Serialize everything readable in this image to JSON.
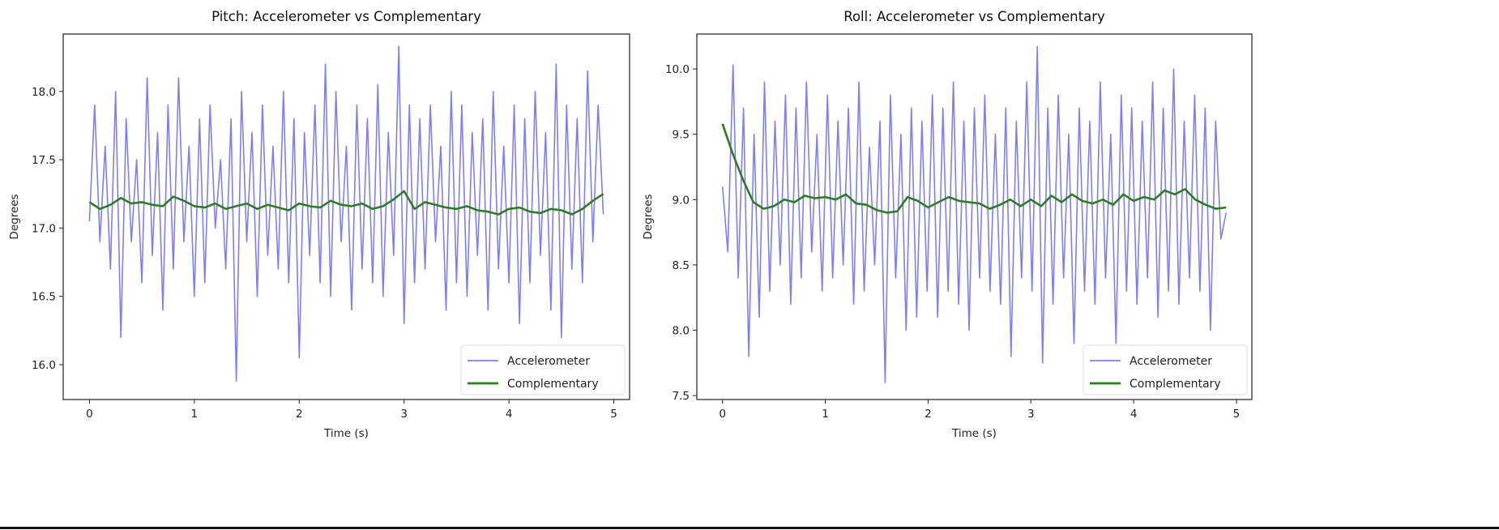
{
  "chart_data": [
    {
      "type": "line",
      "title": "Pitch: Accelerometer vs Complementary",
      "xlabel": "Time (s)",
      "ylabel": "Degrees",
      "xlim": [
        -0.25,
        5.15
      ],
      "ylim": [
        15.745,
        18.42
      ],
      "xticks": [
        0,
        1,
        2,
        3,
        4,
        5
      ],
      "xtick_labels": [
        "0",
        "1",
        "2",
        "3",
        "4",
        "5"
      ],
      "yticks": [
        16.0,
        16.5,
        17.0,
        17.5,
        18.0
      ],
      "ytick_labels": [
        "16.0",
        "16.5",
        "17.0",
        "17.5",
        "18.0"
      ],
      "grid": false,
      "legend_position": "lower-right",
      "x_range": [
        0,
        4.9
      ],
      "series": [
        {
          "name": "Accelerometer",
          "color": "#7f7ff5",
          "values": [
            17.05,
            17.9,
            16.9,
            17.6,
            16.7,
            18.0,
            16.2,
            17.8,
            16.9,
            17.5,
            16.6,
            18.1,
            16.8,
            17.7,
            16.4,
            17.9,
            16.7,
            18.1,
            16.9,
            17.6,
            16.5,
            17.8,
            16.6,
            17.9,
            17.0,
            17.5,
            16.7,
            17.8,
            15.88,
            18.0,
            16.9,
            17.7,
            16.5,
            17.9,
            16.8,
            17.6,
            16.7,
            18.0,
            16.6,
            17.8,
            16.05,
            17.7,
            16.8,
            17.9,
            16.6,
            18.2,
            16.5,
            18.0,
            16.9,
            17.6,
            16.4,
            17.9,
            16.7,
            17.8,
            16.6,
            18.05,
            16.5,
            17.7,
            16.8,
            18.33,
            16.3,
            17.9,
            16.6,
            17.8,
            16.7,
            17.9,
            16.9,
            17.6,
            16.4,
            18.0,
            16.6,
            17.9,
            16.5,
            17.7,
            16.8,
            17.8,
            16.4,
            18.0,
            16.7,
            17.6,
            16.6,
            17.9,
            16.3,
            17.8,
            16.6,
            18.0,
            16.8,
            17.7,
            16.4,
            18.2,
            16.2,
            17.9,
            16.7,
            17.8,
            16.6,
            18.15,
            16.9,
            17.9,
            17.1
          ]
        },
        {
          "name": "Complementary",
          "color": "#2e7d1e",
          "values": [
            17.19,
            17.14,
            17.17,
            17.22,
            17.18,
            17.19,
            17.17,
            17.16,
            17.23,
            17.2,
            17.16,
            17.15,
            17.18,
            17.14,
            17.16,
            17.18,
            17.14,
            17.17,
            17.15,
            17.13,
            17.18,
            17.16,
            17.15,
            17.2,
            17.17,
            17.16,
            17.18,
            17.14,
            17.16,
            17.21,
            17.27,
            17.14,
            17.19,
            17.17,
            17.15,
            17.14,
            17.16,
            17.13,
            17.12,
            17.1,
            17.14,
            17.15,
            17.12,
            17.11,
            17.14,
            17.13,
            17.1,
            17.14,
            17.2,
            17.25
          ]
        }
      ]
    },
    {
      "type": "line",
      "title": "Roll: Accelerometer vs Complementary",
      "xlabel": "Time (s)",
      "ylabel": "Degrees",
      "xlim": [
        -0.25,
        5.15
      ],
      "ylim": [
        7.47,
        10.267
      ],
      "xticks": [
        0,
        1,
        2,
        3,
        4,
        5
      ],
      "xtick_labels": [
        "0",
        "1",
        "2",
        "3",
        "4",
        "5"
      ],
      "yticks": [
        7.5,
        8.0,
        8.5,
        9.0,
        9.5,
        10.0
      ],
      "ytick_labels": [
        "7.5",
        "8.0",
        "8.5",
        "9.0",
        "9.5",
        "10.0"
      ],
      "grid": false,
      "legend_position": "lower-right",
      "x_range": [
        0,
        4.9
      ],
      "series": [
        {
          "name": "Accelerometer",
          "color": "#7f7ff5",
          "values": [
            9.1,
            8.6,
            10.03,
            8.4,
            9.7,
            7.8,
            9.5,
            8.1,
            9.9,
            8.3,
            9.6,
            8.5,
            9.8,
            8.2,
            9.7,
            8.4,
            9.9,
            8.6,
            9.5,
            8.3,
            9.8,
            8.4,
            9.6,
            8.5,
            9.7,
            8.2,
            9.9,
            8.3,
            9.4,
            8.5,
            9.6,
            7.6,
            9.8,
            8.4,
            9.5,
            8.0,
            9.7,
            8.1,
            9.6,
            8.3,
            9.8,
            8.1,
            9.7,
            8.3,
            9.9,
            8.2,
            9.6,
            8.0,
            9.7,
            8.4,
            9.8,
            8.3,
            9.5,
            8.2,
            9.7,
            7.8,
            9.6,
            8.4,
            9.9,
            8.3,
            10.17,
            7.75,
            9.7,
            8.2,
            9.8,
            8.4,
            9.5,
            7.9,
            9.7,
            8.3,
            9.6,
            8.2,
            9.9,
            8.4,
            9.5,
            7.9,
            9.8,
            8.3,
            9.7,
            8.2,
            9.6,
            8.4,
            9.9,
            8.1,
            9.7,
            8.3,
            10.0,
            8.2,
            9.6,
            8.4,
            9.8,
            8.3,
            9.7,
            8.0,
            9.6,
            8.7,
            8.9
          ]
        },
        {
          "name": "Complementary",
          "color": "#2e7d1e",
          "values": [
            9.58,
            9.35,
            9.15,
            8.98,
            8.93,
            8.95,
            9.0,
            8.98,
            9.03,
            9.01,
            9.02,
            9.0,
            9.04,
            8.97,
            8.96,
            8.92,
            8.9,
            8.91,
            9.02,
            8.99,
            8.94,
            8.98,
            9.02,
            8.99,
            8.98,
            8.97,
            8.93,
            8.96,
            9.0,
            8.95,
            9.0,
            8.95,
            9.03,
            8.98,
            9.04,
            8.99,
            8.97,
            9.0,
            8.96,
            9.04,
            8.99,
            9.02,
            9.0,
            9.07,
            9.04,
            9.08,
            9.0,
            8.96,
            8.93,
            8.94
          ]
        }
      ]
    }
  ]
}
